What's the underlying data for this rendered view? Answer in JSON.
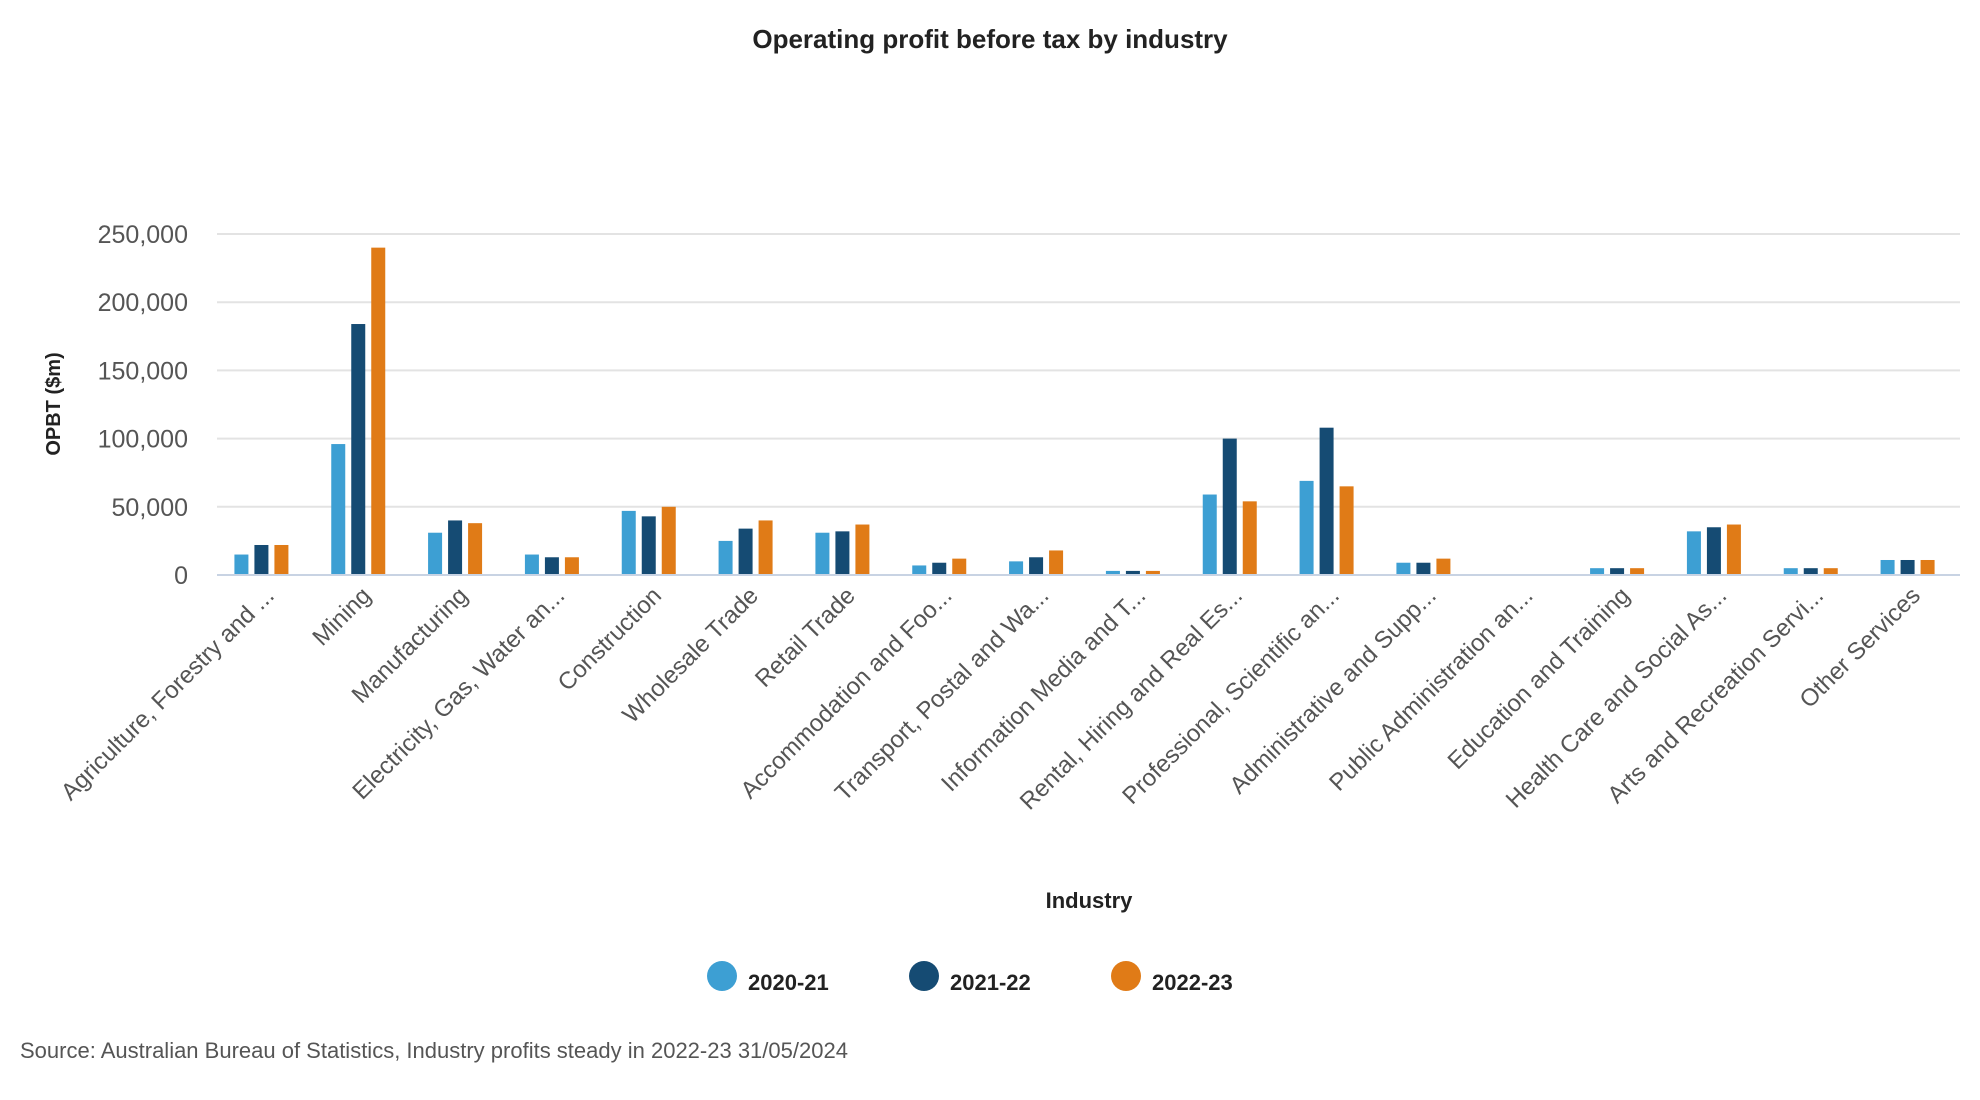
{
  "chart_data": {
    "type": "bar",
    "title": "Operating profit before tax by industry",
    "xlabel": "Industry",
    "ylabel": "OPBT ($m)",
    "ylim": [
      0,
      250000
    ],
    "yticks": [
      0,
      50000,
      100000,
      150000,
      200000,
      250000
    ],
    "ytick_labels": [
      "0",
      "50,000",
      "100,000",
      "150,000",
      "200,000",
      "250,000"
    ],
    "grid": true,
    "legend_position": "bottom",
    "categories": [
      "Agriculture, Forestry and ...",
      "Mining",
      "Manufacturing",
      "Electricity, Gas, Water an...",
      "Construction",
      "Wholesale Trade",
      "Retail Trade",
      "Accommodation and Foo...",
      "Transport, Postal and Wa...",
      "Information Media and T...",
      "Rental, Hiring and Real Es...",
      "Professional, Scientific an...",
      "Administrative and Supp...",
      "Public Administration an...",
      "Education and Training",
      "Health Care and Social As...",
      "Arts and Recreation Servi...",
      "Other Services"
    ],
    "series": [
      {
        "name": "2020-21",
        "color": "#3d9fd3",
        "values": [
          15000,
          96000,
          31000,
          15000,
          47000,
          25000,
          31000,
          7000,
          10000,
          3000,
          59000,
          69000,
          9000,
          0,
          5000,
          32000,
          5000,
          11000
        ]
      },
      {
        "name": "2021-22",
        "color": "#154b73",
        "values": [
          22000,
          184000,
          40000,
          13000,
          43000,
          34000,
          32000,
          9000,
          13000,
          3000,
          100000,
          108000,
          9000,
          0,
          5000,
          35000,
          5000,
          11000
        ]
      },
      {
        "name": "2022-23",
        "color": "#e07b17",
        "values": [
          22000,
          240000,
          38000,
          13000,
          50000,
          40000,
          37000,
          12000,
          18000,
          3000,
          54000,
          65000,
          12000,
          0,
          5000,
          37000,
          5000,
          11000
        ]
      }
    ]
  },
  "source": "Source: Australian Bureau of Statistics, Industry profits steady in 2022-23 31/05/2024"
}
